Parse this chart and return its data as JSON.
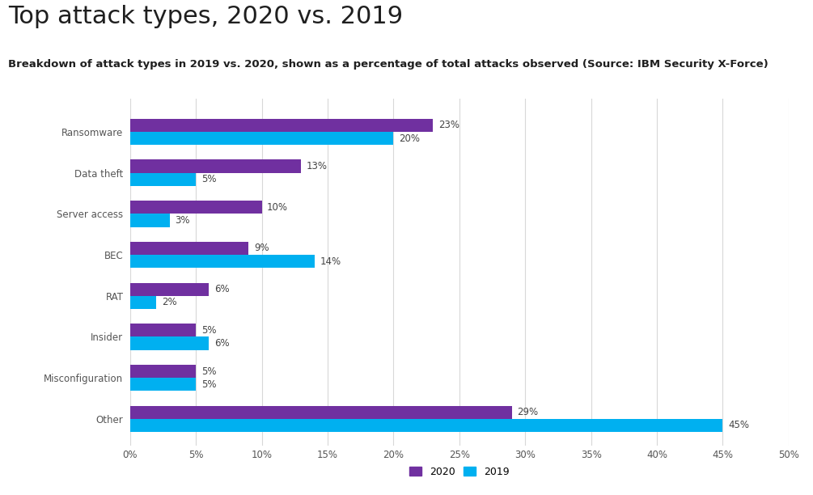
{
  "title": "Top attack types, 2020 vs. 2019",
  "subtitle": "Breakdown of attack types in 2019 vs. 2020, shown as a percentage of total attacks observed (Source: IBM Security X-Force)",
  "categories": [
    "Other",
    "Misconfiguration",
    "Insider",
    "RAT",
    "BEC",
    "Server access",
    "Data theft",
    "Ransomware"
  ],
  "values_2020": [
    29,
    5,
    5,
    6,
    9,
    10,
    13,
    23
  ],
  "values_2019": [
    45,
    5,
    6,
    2,
    14,
    3,
    5,
    20
  ],
  "color_2020": "#7030a0",
  "color_2019": "#00b0f0",
  "xlabel_ticks": [
    0,
    5,
    10,
    15,
    20,
    25,
    30,
    35,
    40,
    45,
    50
  ],
  "xlim": [
    0,
    50
  ],
  "title_color": "#1f1f1f",
  "subtitle_color": "#1f1f1f",
  "legend_label_2020": "2020",
  "legend_label_2019": "2019",
  "bar_height": 0.32,
  "background_color": "#ffffff",
  "grid_color": "#d8d8d8",
  "label_fontsize": 8.5,
  "title_fontsize": 22,
  "subtitle_fontsize": 9.5,
  "tick_label_fontsize": 8.5
}
